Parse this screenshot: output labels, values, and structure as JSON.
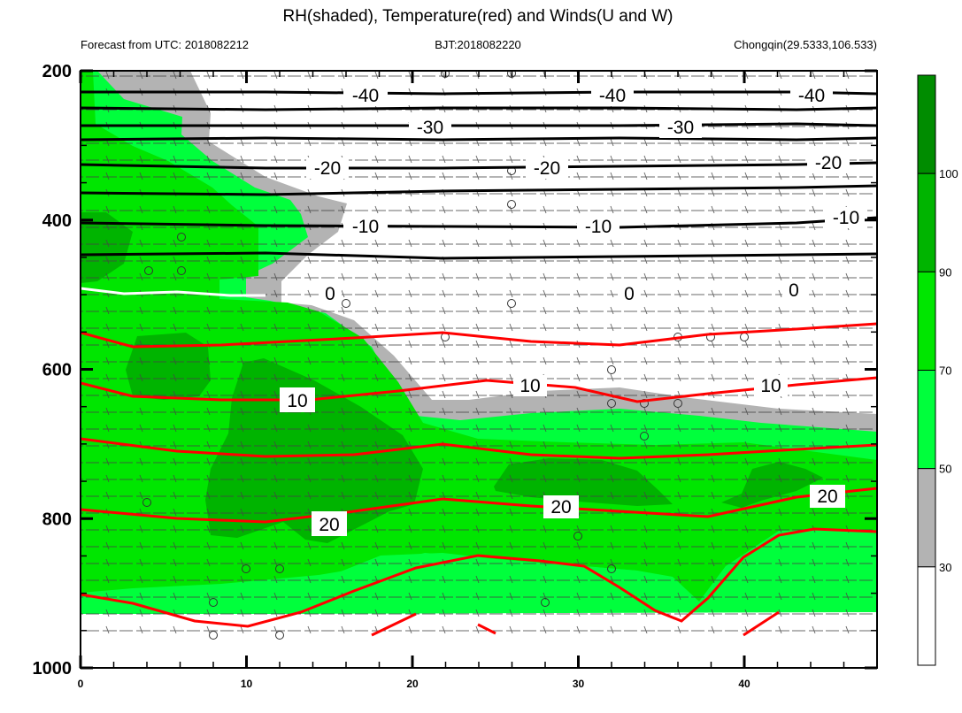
{
  "chart_data": {
    "type": "contour",
    "title": "RH(shaded), Temperature(red) and Winds(U and W)",
    "left_label": "Forecast from UTC: 2018082212",
    "center_label": "BJT:2018082220",
    "right_label": "Chongqin(29.5333,106.533)",
    "xlim": [
      0,
      48
    ],
    "ylim": [
      1000,
      200
    ],
    "x_ticks": [
      "0",
      "10",
      "20",
      "30",
      "40"
    ],
    "y_ticks": [
      "200",
      "400",
      "600",
      "800",
      "1000"
    ],
    "colorbar": {
      "labels": [
        "30",
        "50",
        "70",
        "90",
        "100"
      ],
      "levels": [
        30,
        50,
        70,
        90,
        100
      ],
      "colors": [
        "#ffffff",
        "#b3b3b3",
        "#00ff3c",
        "#00e600",
        "#00b400",
        "#008c00"
      ]
    },
    "temperature_labels": [
      "-40",
      "-40",
      "-40",
      "-30",
      "-30",
      "-20",
      "-20",
      "-20",
      "-10",
      "-10",
      "-10",
      "0",
      "0",
      "0",
      "10",
      "10",
      "10",
      "20",
      "20",
      "20"
    ]
  }
}
